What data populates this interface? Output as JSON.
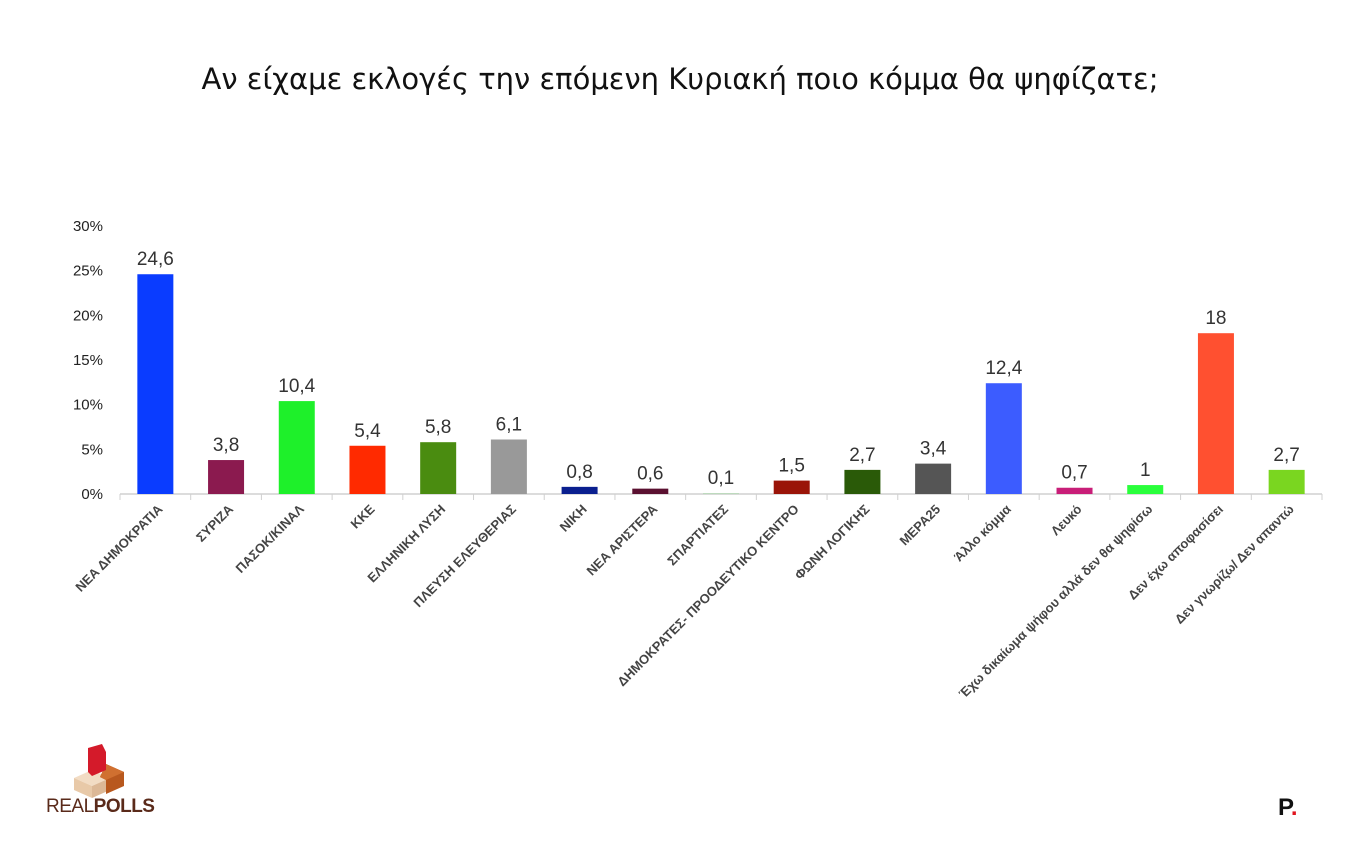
{
  "chart_data": {
    "type": "bar",
    "title": "Αν είχαμε εκλογές την επόμενη Κυριακή ποιο κόμμα θα ψηφίζατε;",
    "categories": [
      "ΝΕΑ ΔΗΜΟΚΡΑΤΙΑ",
      "ΣΥΡΙΖΑ",
      "ΠΑΣΟΚ/ΚΙΝΑΛ",
      "ΚΚΕ",
      "ΕΛΛΗΝΙΚΗ ΛΥΣΗ",
      "ΠΛΕΥΣΗ ΕΛΕΥΘΕΡΙΑΣ",
      "ΝΙΚΗ",
      "ΝΕΑ ΑΡΙΣΤΕΡΑ",
      "ΣΠΑΡΤΙΑΤΕΣ",
      "ΔΗΜΟΚΡΑΤΕΣ-  ΠΡΟΟΔΕΥΤΙΚΟ ΚΕΝΤΡΟ",
      "ΦΩΝΗ ΛΟΓΙΚΗΣ",
      "ΜΕΡΑ25",
      "Άλλο κόμμα",
      "Λευκό",
      "Έχω δικαίωμα ψήφου αλλά δεν θα ψηφίσω",
      "Δεν έχω αποφασίσει",
      "Δεν γνωρίζω/ Δεν απαντώ"
    ],
    "values": [
      24.6,
      3.8,
      10.4,
      5.4,
      5.8,
      6.1,
      0.8,
      0.6,
      0.1,
      1.5,
      2.7,
      3.4,
      12.4,
      0.7,
      1,
      18,
      2.7
    ],
    "value_labels": [
      "24,6",
      "3,8",
      "10,4",
      "5,4",
      "5,8",
      "6,1",
      "0,8",
      "0,6",
      "0,1",
      "1,5",
      "2,7",
      "3,4",
      "12,4",
      "0,7",
      "1",
      "18",
      "2,7"
    ],
    "colors": [
      "#0a3cff",
      "#8b1a4f",
      "#1ef02a",
      "#ff2a00",
      "#4a8c10",
      "#999999",
      "#0a1f8f",
      "#5a1030",
      "#b8d8b8",
      "#9a1408",
      "#2a5a08",
      "#555555",
      "#3c5cff",
      "#c81e78",
      "#2aff3c",
      "#ff5030",
      "#7ad620"
    ],
    "yticks": [
      "0%",
      "5%",
      "10%",
      "15%",
      "20%",
      "25%",
      "30%"
    ],
    "ylim": [
      0,
      30
    ],
    "grid": false,
    "xlabel": "",
    "ylabel": ""
  },
  "logos": {
    "left": "REALPOLLS",
    "right": "P."
  }
}
